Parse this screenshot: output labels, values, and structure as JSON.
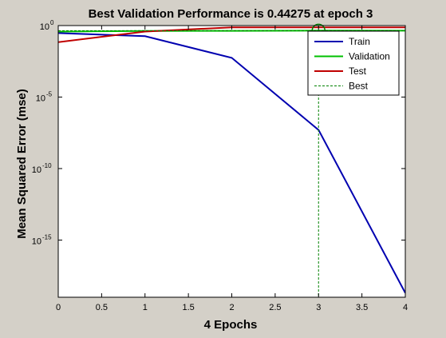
{
  "chart_data": {
    "type": "line",
    "title": "Best Validation Performance is 0.44275 at epoch 3",
    "xlabel": "4 Epochs",
    "ylabel": "Mean Squared Error  (mse)",
    "xlim": [
      0,
      4
    ],
    "ylim": [
      1e-19,
      1
    ],
    "yscale": "log",
    "x_ticks": [
      "0",
      "0.5",
      "1",
      "1.5",
      "2",
      "2.5",
      "3",
      "3.5",
      "4"
    ],
    "y_ticks": [
      {
        "base": "10",
        "exp": "0",
        "value": 1
      },
      {
        "base": "10",
        "exp": "-5",
        "value": 1e-05
      },
      {
        "base": "10",
        "exp": "-10",
        "value": 1e-10
      },
      {
        "base": "10",
        "exp": "-15",
        "value": 1e-15
      }
    ],
    "legend_position": "top-right",
    "grid": false,
    "series": [
      {
        "name": "Train",
        "color": "#0000b0",
        "style": "solid",
        "x": [
          0,
          1,
          2,
          3,
          4
        ],
        "y": [
          0.3,
          0.18,
          0.0055,
          5e-08,
          2e-19
        ]
      },
      {
        "name": "Validation",
        "color": "#00c000",
        "style": "solid",
        "x": [
          0,
          1,
          2,
          3,
          4
        ],
        "y": [
          0.38,
          0.42,
          0.43,
          0.44275,
          0.44
        ]
      },
      {
        "name": "Test",
        "color": "#c00000",
        "style": "solid",
        "x": [
          0,
          1,
          2,
          3,
          4
        ],
        "y": [
          0.07,
          0.38,
          0.75,
          0.75,
          0.75
        ]
      }
    ],
    "best": {
      "name": "Best",
      "color": "#008000",
      "style": "dashed",
      "x": 3,
      "y": 0.44275
    }
  }
}
